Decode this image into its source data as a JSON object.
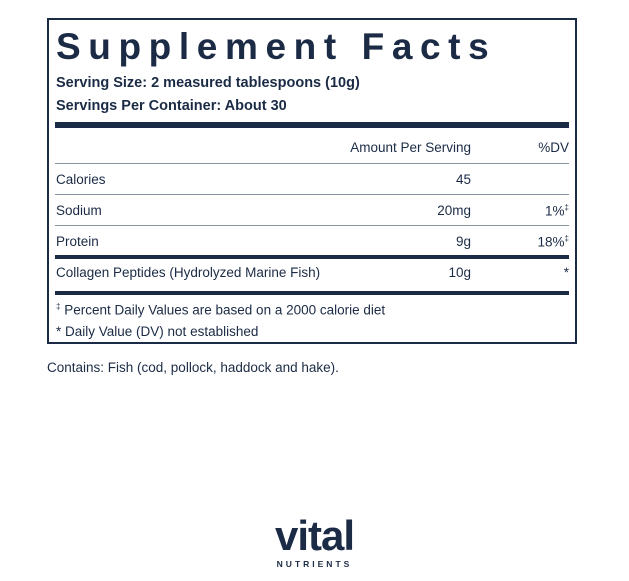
{
  "header": {
    "title": "Supplement Facts",
    "serving_size": "Serving Size: 2 measured tablespoons (10g)",
    "servings_per_container": "Servings Per Container: About 30"
  },
  "table": {
    "columns": {
      "amount": "Amount Per Serving",
      "dv": "%DV"
    },
    "rows": [
      {
        "name": "Calories",
        "amount": "45"
      },
      {
        "name": "Sodium",
        "amount": "20mg",
        "dv": "1%",
        "dv_mark": "‡"
      },
      {
        "name": "Protein",
        "amount": "9g",
        "dv": "18%",
        "dv_mark": "‡"
      },
      {
        "name": "Collagen Peptides (Hydrolyzed Marine Fish)",
        "amount": "10g",
        "dv": "*"
      }
    ]
  },
  "footnotes": [
    {
      "mark": "‡",
      "text": " Percent Daily Values are based on a 2000 calorie diet"
    },
    {
      "mark": "*",
      "text": " Daily Value (DV) not established"
    }
  ],
  "contains": "Contains: Fish (cod, pollock, haddock and hake).",
  "logo": {
    "name": "vital",
    "subtitle": "NUTRIENTS"
  }
}
